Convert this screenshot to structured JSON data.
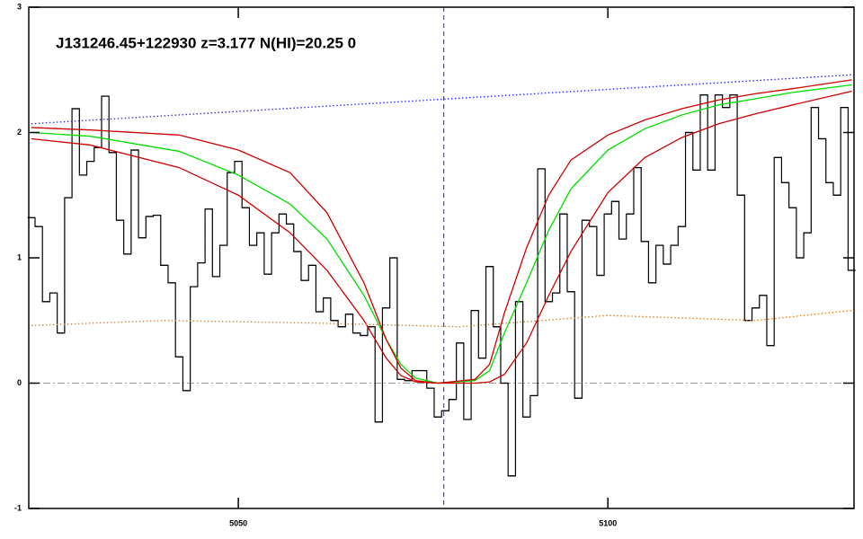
{
  "chart_data": {
    "type": "line",
    "title": "J131246.45+122930 z=3.177 N(HI)=20.25 0",
    "xlim": [
      5021.65,
      5133.3
    ],
    "ylim": [
      -1,
      3
    ],
    "xticks": [
      5050,
      5100
    ],
    "yticks": [
      3,
      2,
      1,
      0,
      -1
    ],
    "hline": 0,
    "hline_color": "#999999",
    "vline": 5077.8,
    "vline_color": "#2020cc",
    "series": [
      {
        "style": "step",
        "color": "#000000",
        "x": [
          5022,
          5023,
          5024,
          5025,
          5026,
          5027,
          5028,
          5029,
          5030,
          5031,
          5032,
          5033,
          5034,
          5035,
          5036,
          5037,
          5038,
          5039,
          5040,
          5041,
          5042,
          5043,
          5044,
          5045,
          5046,
          5047,
          5048,
          5049,
          5050,
          5051,
          5052,
          5053,
          5054,
          5055,
          5056,
          5057,
          5058,
          5059,
          5060,
          5061,
          5062,
          5063,
          5064,
          5065,
          5066,
          5067,
          5068,
          5069,
          5070,
          5071,
          5072,
          5073,
          5074,
          5075,
          5076,
          5077,
          5078,
          5079,
          5080,
          5081,
          5082,
          5083,
          5084,
          5085,
          5086,
          5087,
          5088,
          5089,
          5090,
          5091,
          5092,
          5093,
          5094,
          5095,
          5096,
          5097,
          5098,
          5099,
          5100,
          5101,
          5102,
          5103,
          5104,
          5105,
          5106,
          5107,
          5108,
          5109,
          5110,
          5111,
          5112,
          5113,
          5114,
          5115,
          5116,
          5117,
          5118,
          5119,
          5120,
          5121,
          5122,
          5123,
          5124,
          5125,
          5126,
          5127,
          5128,
          5129,
          5130,
          5131,
          5132,
          5133
        ],
        "values": [
          1.32,
          1.25,
          0.65,
          0.72,
          0.4,
          1.48,
          2.19,
          1.66,
          1.77,
          1.88,
          2.29,
          1.84,
          1.3,
          1.03,
          1.86,
          1.16,
          1.33,
          1.34,
          0.94,
          0.8,
          0.21,
          -0.06,
          0.77,
          0.96,
          1.39,
          0.85,
          1.1,
          1.68,
          1.77,
          1.4,
          1.1,
          1.2,
          0.87,
          1.2,
          1.35,
          1.27,
          1.05,
          0.82,
          0.94,
          0.57,
          0.68,
          0.5,
          0.45,
          0.55,
          0.4,
          0.38,
          0.45,
          -0.31,
          0.6,
          1.0,
          0.03,
          0.02,
          0.1,
          0.1,
          -0.04,
          -0.27,
          -0.22,
          -0.13,
          0.32,
          -0.29,
          0.58,
          0.2,
          0.93,
          0.45,
          0.0,
          -0.74,
          0.65,
          -0.27,
          -0.1,
          1.71,
          0.65,
          0.72,
          1.35,
          0.73,
          -0.12,
          1.3,
          1.25,
          0.86,
          1.35,
          1.45,
          1.15,
          1.35,
          1.72,
          1.13,
          0.8,
          1.1,
          0.95,
          1.1,
          1.25,
          2.0,
          1.7,
          2.3,
          1.7,
          2.3,
          2.2,
          2.3,
          1.5,
          0.5,
          0.6,
          0.7,
          0.3,
          1.8,
          1.6,
          1.4,
          1.0,
          1.2,
          2.2,
          1.95,
          1.6,
          1.5,
          2.2,
          0.9
        ]
      },
      {
        "style": "solid",
        "color": "#00dd00",
        "x": [
          5022,
          5030,
          5042,
          5050,
          5057,
          5062,
          5067,
          5070,
          5072,
          5074,
          5077,
          5082,
          5084,
          5086,
          5089,
          5092,
          5095,
          5100,
          5105,
          5110,
          5115,
          5120,
          5125,
          5133
        ],
        "values": [
          2.0,
          1.97,
          1.85,
          1.66,
          1.43,
          1.15,
          0.7,
          0.35,
          0.15,
          0.04,
          0,
          0.02,
          0.1,
          0.4,
          0.8,
          1.22,
          1.55,
          1.86,
          2.03,
          2.14,
          2.22,
          2.27,
          2.32,
          2.38
        ]
      },
      {
        "style": "solid",
        "color": "#cc0000",
        "x": [
          5022,
          5030,
          5042,
          5050,
          5057,
          5062,
          5067,
          5070,
          5072,
          5074,
          5077,
          5082,
          5084,
          5086,
          5089,
          5092,
          5095,
          5100,
          5105,
          5110,
          5115,
          5120,
          5125,
          5133
        ],
        "values": [
          2.04,
          2.02,
          1.98,
          1.86,
          1.68,
          1.36,
          0.8,
          0.35,
          0.12,
          0.02,
          0,
          0.03,
          0.15,
          0.56,
          1.08,
          1.5,
          1.78,
          1.98,
          2.1,
          2.19,
          2.26,
          2.31,
          2.35,
          2.42
        ]
      },
      {
        "style": "solid",
        "color": "#cc0000",
        "x": [
          5022,
          5030,
          5042,
          5050,
          5057,
          5062,
          5067,
          5070,
          5072,
          5074,
          5077,
          5082,
          5084,
          5086,
          5089,
          5092,
          5095,
          5100,
          5105,
          5110,
          5115,
          5120,
          5125,
          5133
        ],
        "values": [
          1.95,
          1.9,
          1.72,
          1.5,
          1.2,
          0.9,
          0.5,
          0.2,
          0.06,
          0.01,
          0,
          0,
          0.01,
          0.07,
          0.32,
          0.7,
          1.05,
          1.52,
          1.8,
          1.96,
          2.07,
          2.15,
          2.22,
          2.33
        ]
      },
      {
        "style": "dotted",
        "color": "#3030ff",
        "x": [
          5022,
          5133
        ],
        "values": [
          2.07,
          2.46
        ]
      },
      {
        "style": "dotted",
        "color": "#e08020",
        "x": [
          5022,
          5040,
          5060,
          5080,
          5100,
          5120,
          5133
        ],
        "values": [
          0.46,
          0.5,
          0.48,
          0.45,
          0.54,
          0.5,
          0.58
        ]
      }
    ]
  }
}
